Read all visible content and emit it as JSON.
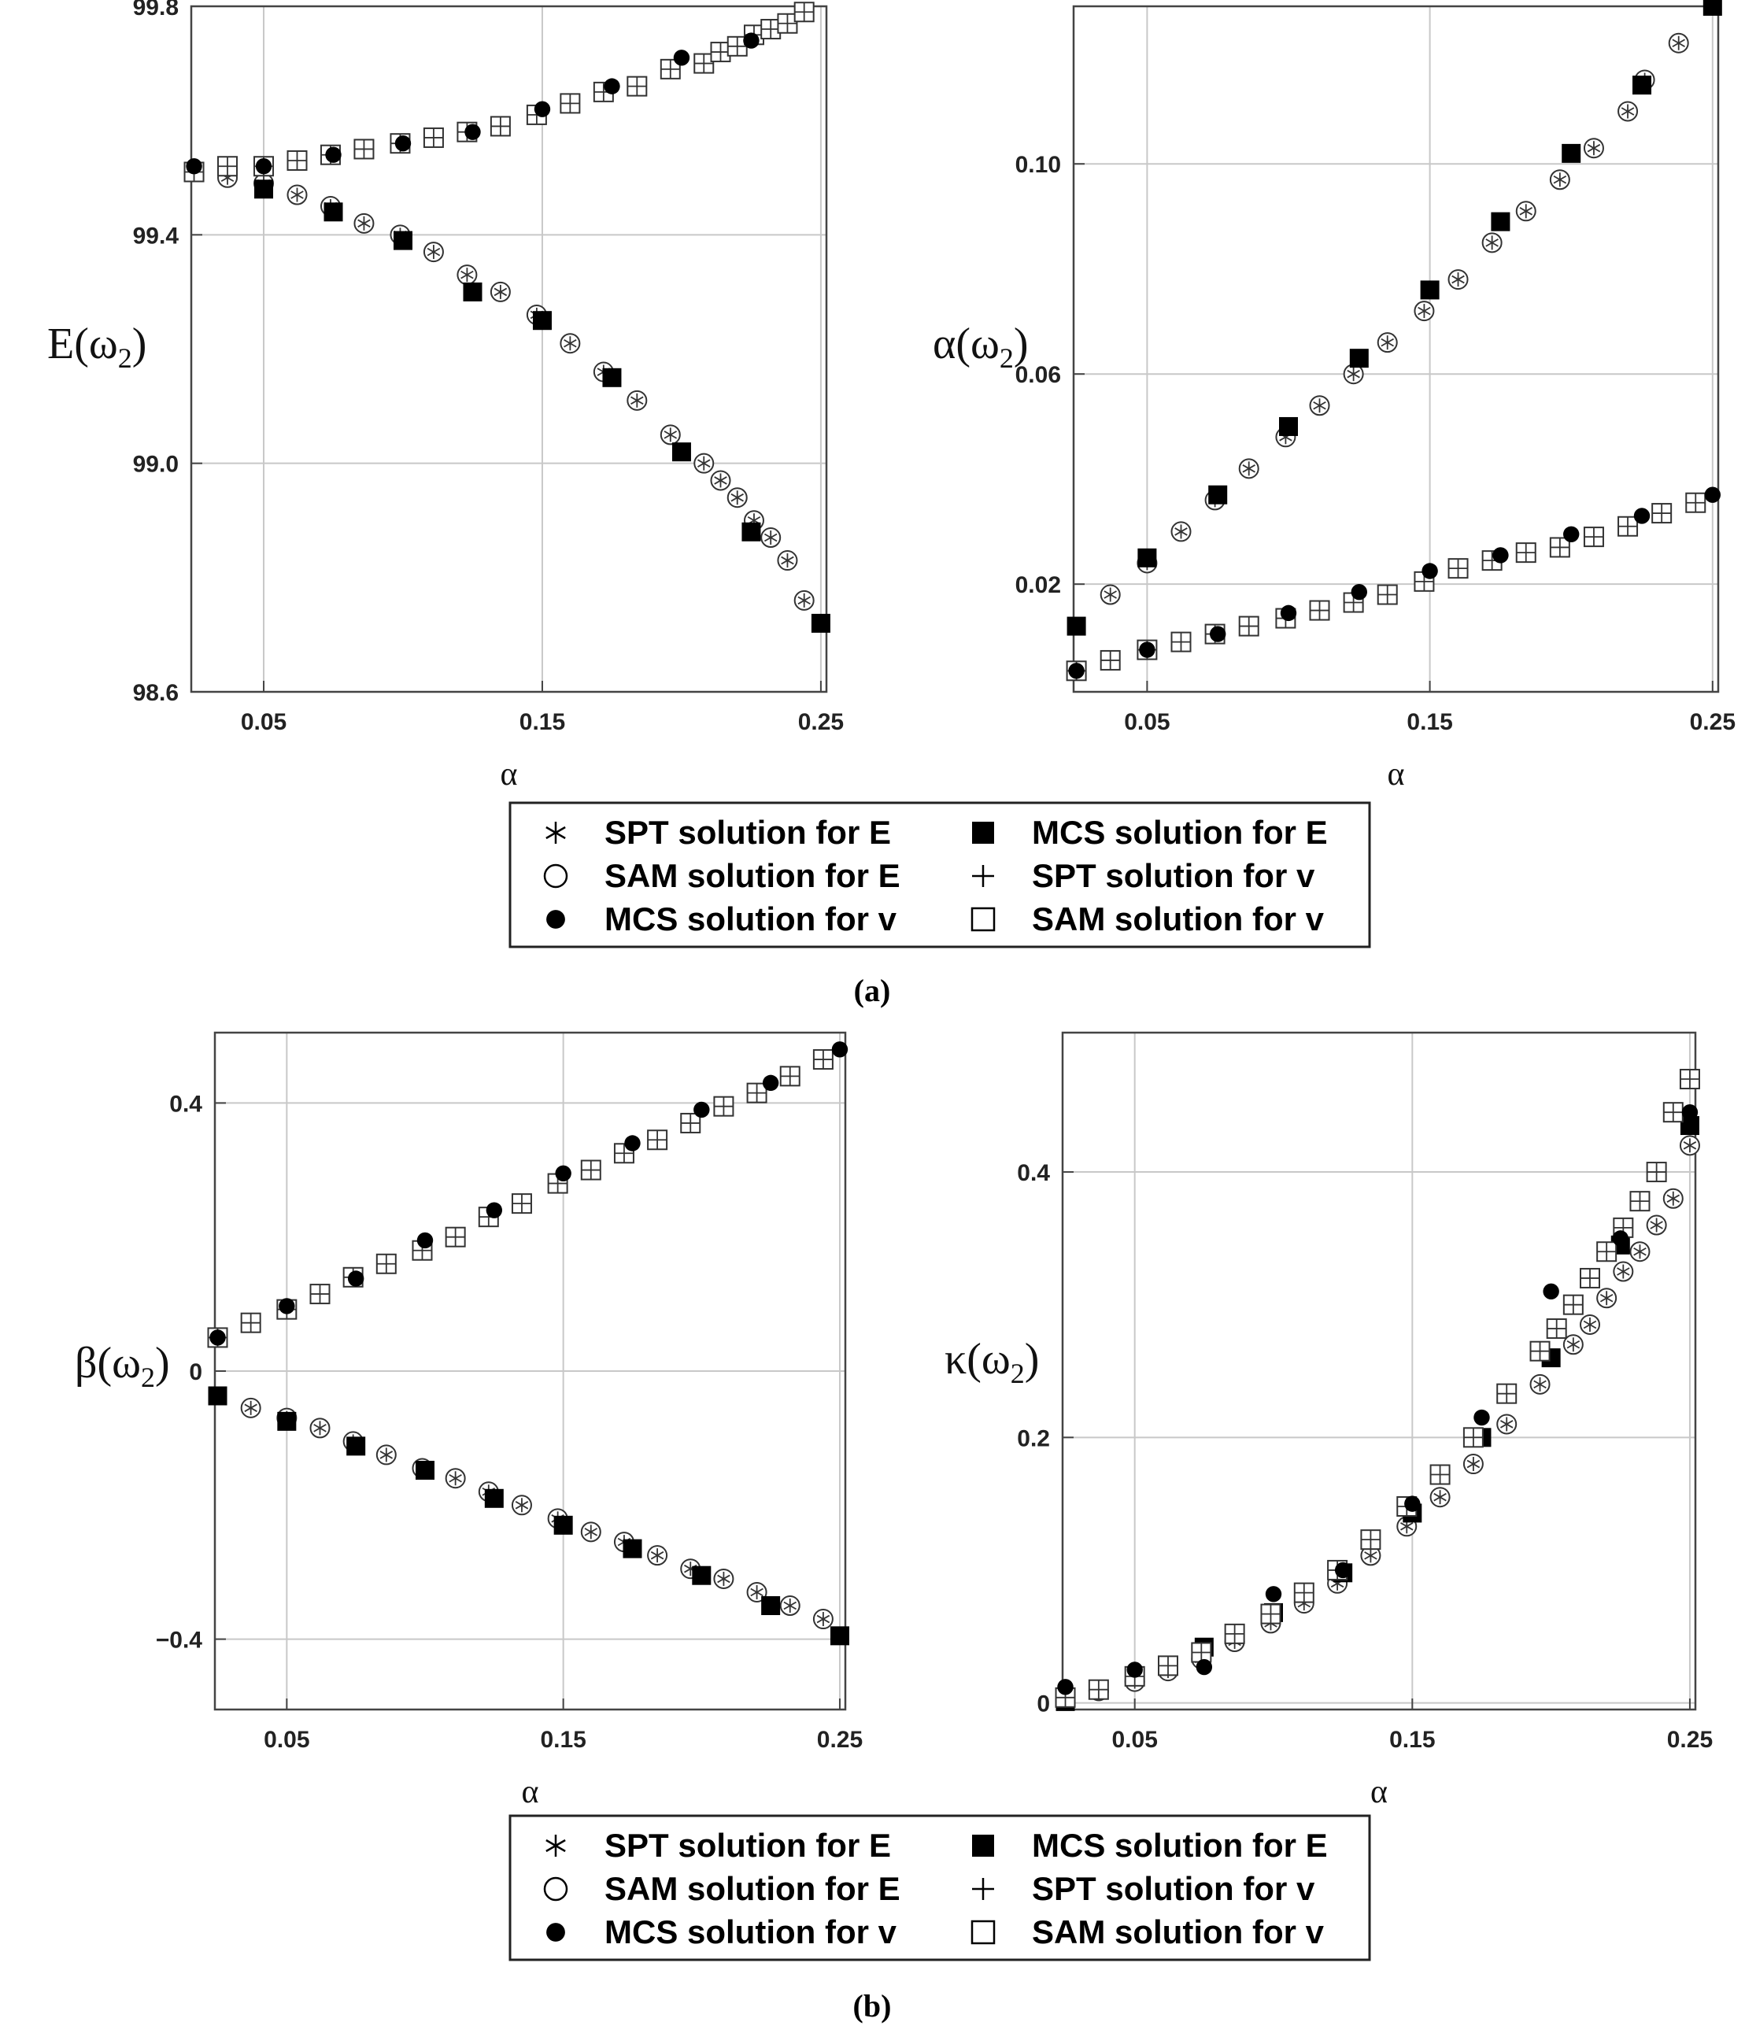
{
  "chart_data": [
    {
      "type": "scatter",
      "panel": "a-left",
      "xlabel": "α",
      "ylabel": "E(ω2)",
      "ylabel_main": "E",
      "ylabel_sub": "2",
      "xlim": [
        0.024,
        0.252
      ],
      "ylim": [
        98.6,
        99.8
      ],
      "xticks": [
        0.05,
        0.15,
        0.25
      ],
      "xtick_labels": [
        "0.05",
        "0.15",
        "0.25"
      ],
      "yticks": [
        98.6,
        99.0,
        99.4,
        99.8
      ],
      "ytick_labels": [
        "98.6",
        "99.0",
        "99.4",
        "99.8"
      ],
      "grid": true,
      "series": [
        {
          "name": "SPT solution for E",
          "marker": "circle-star",
          "x": [
            0.025,
            0.037,
            0.05,
            0.062,
            0.074,
            0.086,
            0.099,
            0.111,
            0.123,
            0.135,
            0.148,
            0.16,
            0.172,
            0.184,
            0.196,
            0.208,
            0.214,
            0.22,
            0.226,
            0.232,
            0.238,
            0.244
          ],
          "y": [
            99.51,
            99.5,
            99.49,
            99.47,
            99.45,
            99.42,
            99.4,
            99.37,
            99.33,
            99.3,
            99.26,
            99.21,
            99.16,
            99.11,
            99.05,
            99.0,
            98.97,
            98.94,
            98.9,
            98.87,
            98.83,
            98.76
          ]
        },
        {
          "name": "MCS solution for E",
          "marker": "filled-square",
          "x": [
            0.025,
            0.05,
            0.075,
            0.1,
            0.125,
            0.15,
            0.175,
            0.2,
            0.225,
            0.25
          ],
          "y": [
            99.51,
            99.48,
            99.44,
            99.39,
            99.3,
            99.25,
            99.15,
            99.02,
            98.88,
            98.72
          ]
        },
        {
          "name": "SAM solution for v",
          "marker": "square-cross",
          "x": [
            0.025,
            0.037,
            0.05,
            0.062,
            0.074,
            0.086,
            0.099,
            0.111,
            0.123,
            0.135,
            0.148,
            0.16,
            0.172,
            0.184,
            0.196,
            0.208,
            0.214,
            0.22,
            0.226,
            0.232,
            0.238,
            0.244
          ],
          "y": [
            99.51,
            99.52,
            99.52,
            99.53,
            99.54,
            99.55,
            99.56,
            99.57,
            99.58,
            99.59,
            99.61,
            99.63,
            99.65,
            99.66,
            99.69,
            99.7,
            99.72,
            99.73,
            99.75,
            99.76,
            99.77,
            99.79
          ]
        },
        {
          "name": "MCS solution for v",
          "marker": "filled-circle",
          "x": [
            0.025,
            0.05,
            0.075,
            0.1,
            0.125,
            0.15,
            0.175,
            0.2,
            0.225
          ],
          "y": [
            99.52,
            99.52,
            99.54,
            99.56,
            99.58,
            99.62,
            99.66,
            99.71,
            99.74
          ]
        }
      ]
    },
    {
      "type": "scatter",
      "panel": "a-right",
      "xlabel": "α",
      "ylabel": "α(ω2)",
      "ylabel_main": "α",
      "ylabel_sub": "2",
      "xlim": [
        0.024,
        0.252
      ],
      "ylim": [
        -0.0005,
        0.13
      ],
      "xticks": [
        0.05,
        0.15,
        0.25
      ],
      "xtick_labels": [
        "0.05",
        "0.15",
        "0.25"
      ],
      "yticks": [
        0.02,
        0.06,
        0.1
      ],
      "ytick_labels": [
        "0.02",
        "0.06",
        "0.10"
      ],
      "grid": true,
      "series": [
        {
          "name": "SPT solution for E",
          "marker": "circle-star",
          "x": [
            0.037,
            0.05,
            0.062,
            0.074,
            0.086,
            0.099,
            0.111,
            0.123,
            0.135,
            0.148,
            0.16,
            0.172,
            0.184,
            0.196,
            0.208,
            0.22,
            0.226,
            0.238
          ],
          "y": [
            0.018,
            0.024,
            0.03,
            0.036,
            0.042,
            0.048,
            0.054,
            0.06,
            0.066,
            0.072,
            0.078,
            0.085,
            0.091,
            0.097,
            0.103,
            0.11,
            0.116,
            0.123
          ]
        },
        {
          "name": "MCS solution for E",
          "marker": "filled-square",
          "x": [
            0.025,
            0.05,
            0.075,
            0.1,
            0.125,
            0.15,
            0.175,
            0.2,
            0.225,
            0.25
          ],
          "y": [
            0.012,
            0.025,
            0.037,
            0.05,
            0.063,
            0.076,
            0.089,
            0.102,
            0.115,
            0.13
          ]
        },
        {
          "name": "SAM solution for v",
          "marker": "square-cross",
          "x": [
            0.025,
            0.037,
            0.05,
            0.062,
            0.074,
            0.086,
            0.099,
            0.111,
            0.123,
            0.135,
            0.148,
            0.16,
            0.172,
            0.184,
            0.196,
            0.208,
            0.22,
            0.232,
            0.244
          ],
          "y": [
            0.0035,
            0.0055,
            0.0075,
            0.009,
            0.0105,
            0.012,
            0.0135,
            0.015,
            0.0165,
            0.018,
            0.0205,
            0.023,
            0.0245,
            0.026,
            0.027,
            0.029,
            0.031,
            0.0335,
            0.0355
          ]
        },
        {
          "name": "MCS solution for v",
          "marker": "filled-circle",
          "x": [
            0.025,
            0.05,
            0.075,
            0.1,
            0.125,
            0.15,
            0.175,
            0.2,
            0.225,
            0.25
          ],
          "y": [
            0.0035,
            0.0075,
            0.0105,
            0.0145,
            0.0185,
            0.0225,
            0.0255,
            0.0295,
            0.033,
            0.037
          ]
        }
      ]
    },
    {
      "type": "scatter",
      "panel": "b-left",
      "xlabel": "α",
      "ylabel": "β(ω2)",
      "ylabel_main": "β",
      "ylabel_sub": "2",
      "xlim": [
        0.024,
        0.252
      ],
      "ylim": [
        -0.505,
        0.505
      ],
      "xticks": [
        0.05,
        0.15,
        0.25
      ],
      "xtick_labels": [
        "0.05",
        "0.15",
        "0.25"
      ],
      "yticks": [
        -0.4,
        0,
        0.4
      ],
      "ytick_labels": [
        "−0.4",
        "0",
        "0.4"
      ],
      "grid": true,
      "series": [
        {
          "name": "SPT solution for E",
          "marker": "circle-star",
          "x": [
            0.037,
            0.05,
            0.062,
            0.074,
            0.086,
            0.099,
            0.111,
            0.123,
            0.135,
            0.148,
            0.16,
            0.172,
            0.184,
            0.196,
            0.208,
            0.22,
            0.232,
            0.244
          ],
          "y": [
            -0.055,
            -0.07,
            -0.085,
            -0.105,
            -0.125,
            -0.145,
            -0.16,
            -0.18,
            -0.2,
            -0.22,
            -0.24,
            -0.255,
            -0.275,
            -0.295,
            -0.31,
            -0.33,
            -0.35,
            -0.37
          ]
        },
        {
          "name": "MCS solution for E",
          "marker": "filled-square",
          "x": [
            0.025,
            0.05,
            0.075,
            0.1,
            0.125,
            0.15,
            0.175,
            0.2,
            0.225,
            0.25
          ],
          "y": [
            -0.037,
            -0.075,
            -0.112,
            -0.148,
            -0.19,
            -0.23,
            -0.265,
            -0.305,
            -0.35,
            -0.395
          ]
        },
        {
          "name": "SAM solution for v",
          "marker": "square-cross",
          "x": [
            0.025,
            0.037,
            0.05,
            0.062,
            0.074,
            0.086,
            0.099,
            0.111,
            0.123,
            0.135,
            0.148,
            0.16,
            0.172,
            0.184,
            0.196,
            0.208,
            0.22,
            0.232,
            0.244
          ],
          "y": [
            0.05,
            0.072,
            0.092,
            0.115,
            0.14,
            0.16,
            0.18,
            0.2,
            0.23,
            0.25,
            0.28,
            0.3,
            0.325,
            0.345,
            0.37,
            0.395,
            0.415,
            0.44,
            0.465
          ]
        },
        {
          "name": "MCS solution for v",
          "marker": "filled-circle",
          "x": [
            0.025,
            0.05,
            0.075,
            0.1,
            0.125,
            0.15,
            0.175,
            0.2,
            0.225,
            0.25
          ],
          "y": [
            0.05,
            0.097,
            0.138,
            0.195,
            0.24,
            0.295,
            0.34,
            0.39,
            0.43,
            0.48
          ]
        }
      ]
    },
    {
      "type": "scatter",
      "panel": "b-right",
      "xlabel": "α",
      "ylabel": "κ(ω2)",
      "ylabel_main": "κ",
      "ylabel_sub": "2",
      "xlim": [
        0.024,
        0.252
      ],
      "ylim": [
        -0.005,
        0.505
      ],
      "xticks": [
        0.05,
        0.15,
        0.25
      ],
      "xtick_labels": [
        "0.05",
        "0.15",
        "0.25"
      ],
      "yticks": [
        0,
        0.2,
        0.4
      ],
      "ytick_labels": [
        "0",
        "0.2",
        "0.4"
      ],
      "grid": true,
      "series": [
        {
          "name": "SPT solution for E",
          "marker": "circle-star",
          "x": [
            0.025,
            0.037,
            0.05,
            0.062,
            0.074,
            0.086,
            0.099,
            0.111,
            0.123,
            0.135,
            0.148,
            0.16,
            0.172,
            0.184,
            0.196,
            0.208,
            0.214,
            0.22,
            0.226,
            0.232,
            0.238,
            0.244,
            0.25
          ],
          "y": [
            0.002,
            0.009,
            0.016,
            0.024,
            0.033,
            0.046,
            0.06,
            0.075,
            0.09,
            0.111,
            0.133,
            0.155,
            0.18,
            0.21,
            0.24,
            0.27,
            0.285,
            0.305,
            0.325,
            0.34,
            0.36,
            0.38,
            0.42
          ]
        },
        {
          "name": "MCS solution for E",
          "marker": "filled-square",
          "x": [
            0.025,
            0.05,
            0.075,
            0.1,
            0.125,
            0.15,
            0.175,
            0.2,
            0.225,
            0.25
          ],
          "y": [
            0.001,
            0.02,
            0.042,
            0.068,
            0.098,
            0.143,
            0.2,
            0.26,
            0.345,
            0.435
          ]
        },
        {
          "name": "SAM solution for v",
          "marker": "square-cross",
          "x": [
            0.025,
            0.037,
            0.05,
            0.062,
            0.074,
            0.086,
            0.099,
            0.111,
            0.123,
            0.135,
            0.148,
            0.16,
            0.172,
            0.184,
            0.196,
            0.202,
            0.208,
            0.214,
            0.22,
            0.226,
            0.232,
            0.238,
            0.244,
            0.25
          ],
          "y": [
            0.004,
            0.01,
            0.02,
            0.028,
            0.038,
            0.052,
            0.067,
            0.083,
            0.1,
            0.123,
            0.148,
            0.172,
            0.2,
            0.233,
            0.265,
            0.282,
            0.3,
            0.32,
            0.34,
            0.358,
            0.378,
            0.4,
            0.445,
            0.47
          ]
        },
        {
          "name": "MCS solution for v",
          "marker": "filled-circle",
          "x": [
            0.025,
            0.05,
            0.075,
            0.1,
            0.125,
            0.15,
            0.175,
            0.2,
            0.225,
            0.25
          ],
          "y": [
            0.012,
            0.025,
            0.027,
            0.082,
            0.1,
            0.15,
            0.215,
            0.31,
            0.35,
            0.445
          ]
        }
      ]
    }
  ],
  "legend": {
    "entries": [
      {
        "marker": "star",
        "label": "SPT solution for E"
      },
      {
        "marker": "filled-square",
        "label": "MCS solution for E"
      },
      {
        "marker": "circle",
        "label": "SAM solution for E"
      },
      {
        "marker": "plus",
        "label": "SPT solution for v"
      },
      {
        "marker": "filled-circle",
        "label": "MCS solution for v"
      },
      {
        "marker": "square",
        "label": "SAM solution for v"
      }
    ]
  },
  "captions": {
    "a": "(a)",
    "b": "(b)"
  }
}
